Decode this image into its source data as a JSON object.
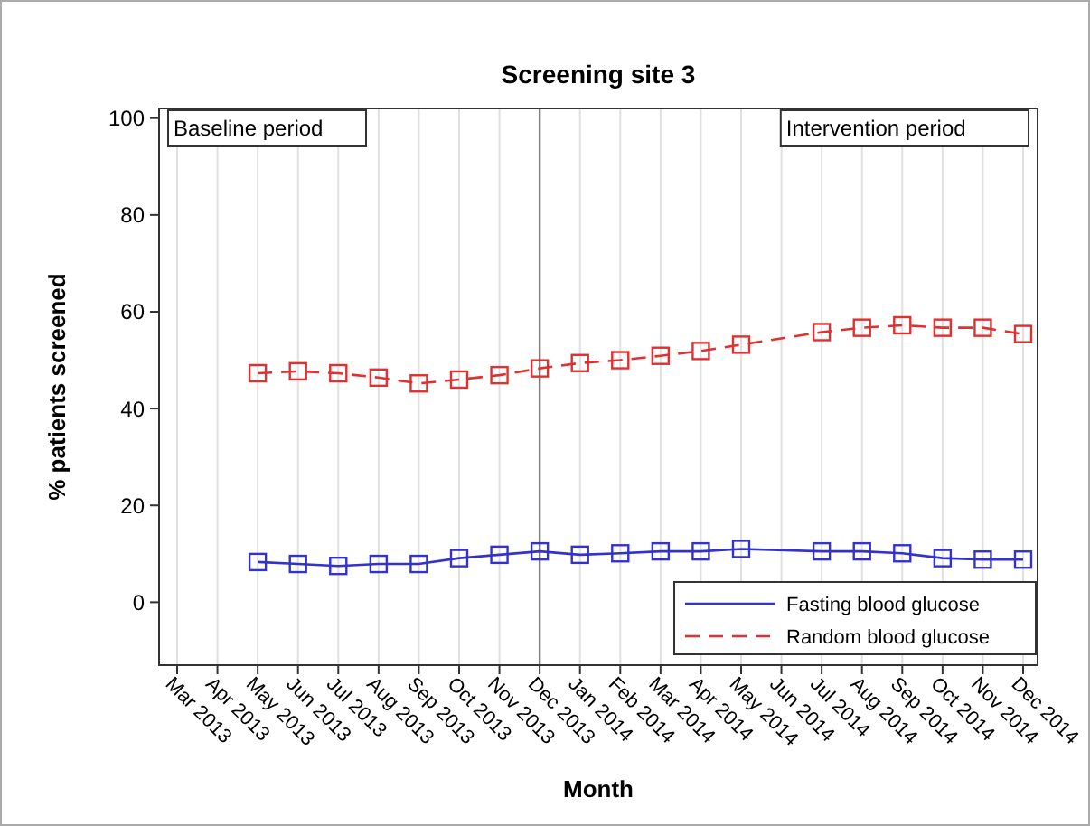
{
  "chart_data": {
    "type": "line",
    "title": "Screening site 3",
    "xlabel": "Month",
    "ylabel": "% patients screened",
    "categories": [
      "Mar 2013",
      "Apr 2013",
      "May 2013",
      "Jun 2013",
      "Jul 2013",
      "Aug 2013",
      "Sep 2013",
      "Oct 2013",
      "Nov 2013",
      "Dec 2013",
      "Jan 2014",
      "Feb 2014",
      "Mar 2014",
      "Apr 2014",
      "May 2014",
      "Jun 2014",
      "Jul 2014",
      "Aug 2014",
      "Sep 2014",
      "Oct 2014",
      "Nov 2014",
      "Dec 2014"
    ],
    "series": [
      {
        "name": "Fasting blood glucose",
        "color": "#3333cc",
        "line_style": "solid",
        "values": [
          null,
          null,
          8.3,
          7.9,
          7.5,
          7.9,
          7.9,
          9.1,
          9.8,
          10.5,
          9.8,
          10.1,
          10.5,
          10.5,
          11.0,
          null,
          10.5,
          10.5,
          10.1,
          9.1,
          8.8,
          8.8
        ]
      },
      {
        "name": "Random blood glucose",
        "color": "#e03030",
        "line_style": "dashed",
        "values": [
          null,
          null,
          47.3,
          47.7,
          47.3,
          46.4,
          45.2,
          46.0,
          46.9,
          48.3,
          49.4,
          50.0,
          50.9,
          51.9,
          53.2,
          null,
          55.8,
          56.7,
          57.2,
          56.7,
          56.7,
          55.4
        ]
      }
    ],
    "ylim": [
      -13,
      102
    ],
    "yticks": [
      0,
      20,
      40,
      60,
      80,
      100
    ],
    "grid": "x",
    "marker": "square",
    "legend": "bottom right",
    "ref_lines": [
      {
        "axis": "x",
        "value": "Dec 2013",
        "color": "#808080"
      }
    ],
    "annotations": [
      "Baseline period",
      "Intervention period"
    ]
  }
}
